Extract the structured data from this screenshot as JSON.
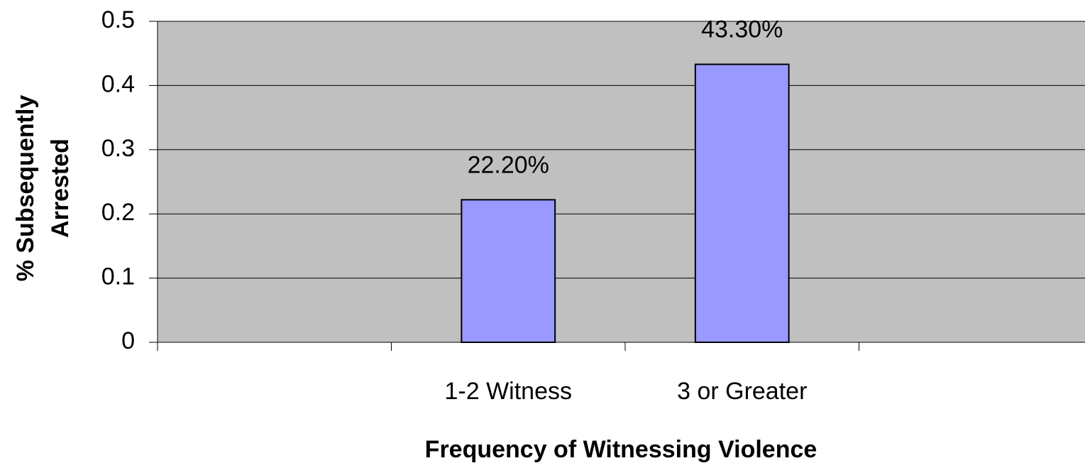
{
  "chart_data": {
    "type": "bar",
    "ylabel": [
      "% Subsequently",
      "Arrested"
    ],
    "xlabel": "Frequency of Witnessing Violence",
    "categories": [
      null,
      "1-2 Witness",
      "3 or Greater",
      null
    ],
    "values": [
      null,
      0.222,
      0.433,
      null
    ],
    "value_labels": [
      null,
      "22.20%",
      "43.30%",
      null
    ],
    "color": "#9999ff",
    "ylim": [
      0,
      0.5
    ],
    "yticks": [
      0,
      0.1,
      0.2,
      0.3,
      0.4,
      0.5
    ],
    "grid": true
  }
}
